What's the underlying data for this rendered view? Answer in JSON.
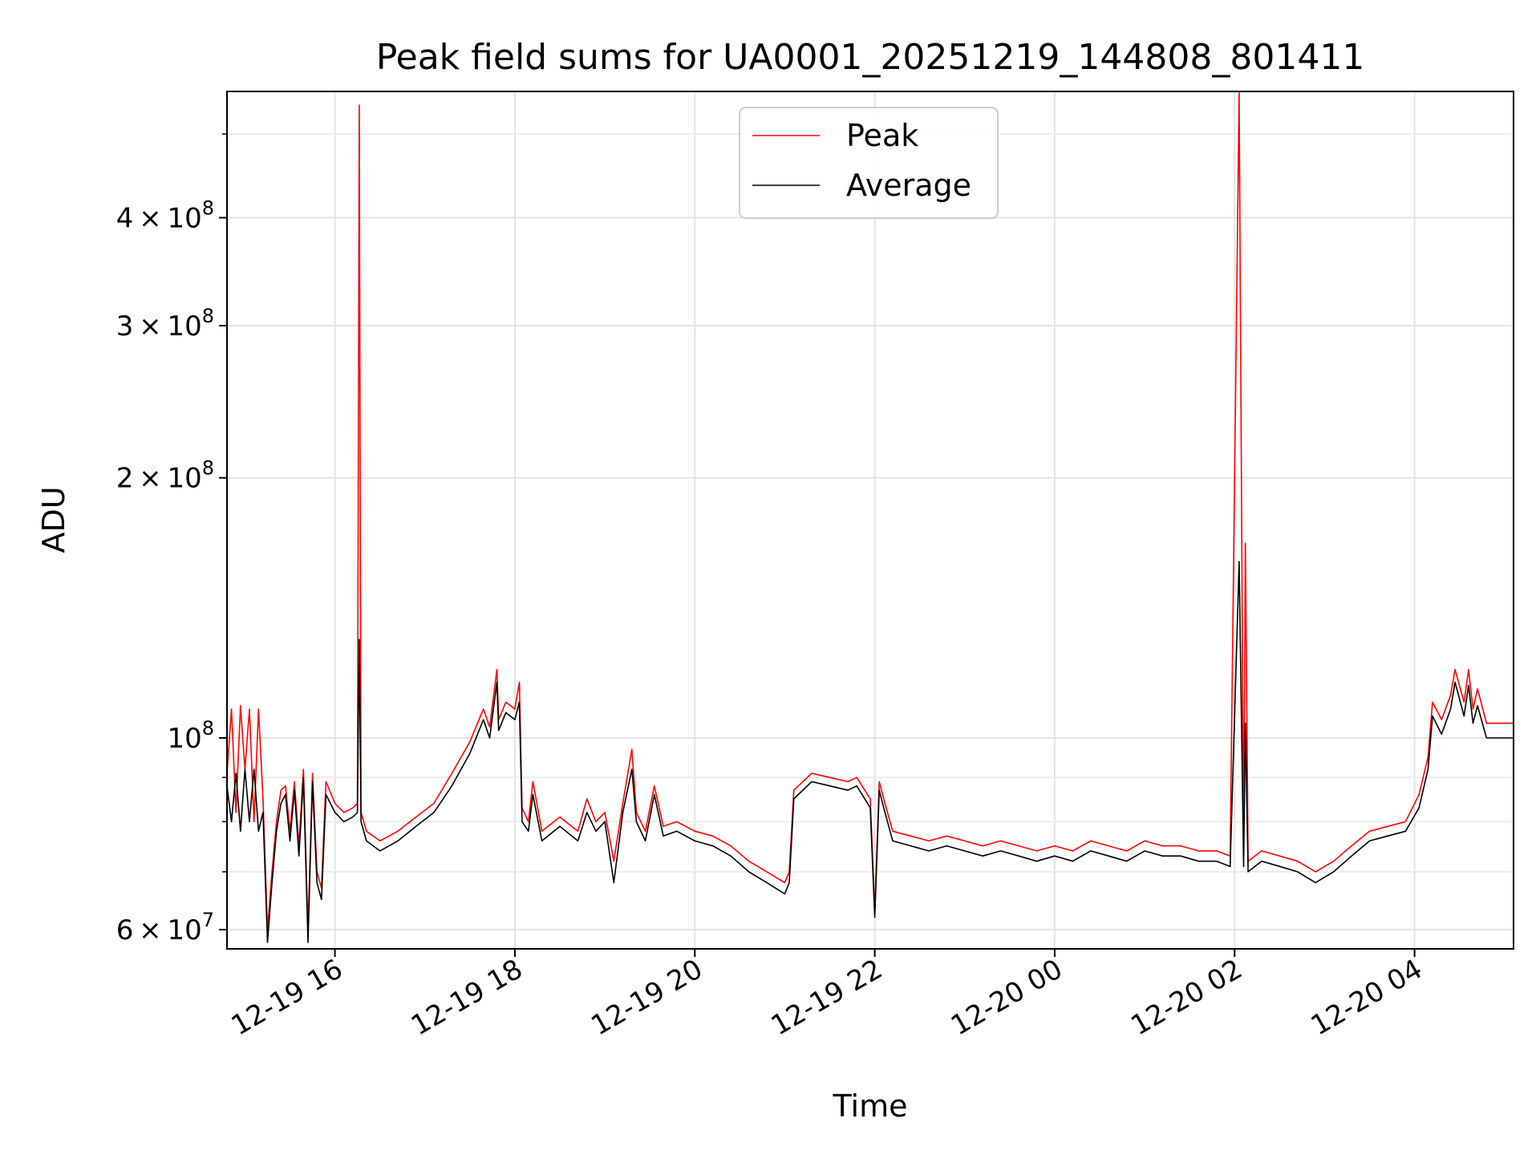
{
  "chart_data": {
    "type": "line",
    "title": "Peak field sums for UA0001_20251219_144808_801411",
    "xlabel": "Time",
    "ylabel": "ADU",
    "yscale": "log",
    "xlim_hours": [
      14.8,
      29.1
    ],
    "ylim": [
      57000000,
      560000000
    ],
    "grid": true,
    "legend_loc": "upper center",
    "x_ticks": [
      {
        "hour": 16,
        "label": "12-19 16"
      },
      {
        "hour": 18,
        "label": "12-19 18"
      },
      {
        "hour": 20,
        "label": "12-19 20"
      },
      {
        "hour": 22,
        "label": "12-19 22"
      },
      {
        "hour": 24,
        "label": "12-20 00"
      },
      {
        "hour": 26,
        "label": "12-20 02"
      },
      {
        "hour": 28,
        "label": "12-20 04"
      }
    ],
    "y_ticks": [
      {
        "value": 60000000,
        "mant": "6 × 10",
        "exp": "7"
      },
      {
        "value": 100000000,
        "mant": "10",
        "exp": "8"
      },
      {
        "value": 200000000,
        "mant": "2 × 10",
        "exp": "8"
      },
      {
        "value": 300000000,
        "mant": "3 × 10",
        "exp": "8"
      },
      {
        "value": 400000000,
        "mant": "4 × 10",
        "exp": "8"
      }
    ],
    "y_minor_grid": [
      70000000,
      80000000,
      90000000,
      500000000
    ],
    "series": [
      {
        "name": "Peak",
        "color": "#ff0000",
        "points": [
          [
            14.8,
            91000000
          ],
          [
            14.85,
            108000000
          ],
          [
            14.9,
            82000000
          ],
          [
            14.95,
            109000000
          ],
          [
            15.0,
            92000000
          ],
          [
            15.05,
            108000000
          ],
          [
            15.1,
            80000000
          ],
          [
            15.15,
            108000000
          ],
          [
            15.2,
            85000000
          ],
          [
            15.25,
            60000000
          ],
          [
            15.3,
            70000000
          ],
          [
            15.35,
            80000000
          ],
          [
            15.4,
            87000000
          ],
          [
            15.45,
            88000000
          ],
          [
            15.5,
            78000000
          ],
          [
            15.55,
            89000000
          ],
          [
            15.6,
            75000000
          ],
          [
            15.65,
            92000000
          ],
          [
            15.7,
            60000000
          ],
          [
            15.75,
            91000000
          ],
          [
            15.8,
            70000000
          ],
          [
            15.85,
            67000000
          ],
          [
            15.9,
            89000000
          ],
          [
            16.0,
            84000000
          ],
          [
            16.1,
            82000000
          ],
          [
            16.2,
            83000000
          ],
          [
            16.25,
            84000000
          ],
          [
            16.27,
            540000000
          ],
          [
            16.29,
            82000000
          ],
          [
            16.35,
            78000000
          ],
          [
            16.5,
            76000000
          ],
          [
            16.7,
            78000000
          ],
          [
            16.9,
            81000000
          ],
          [
            17.1,
            84000000
          ],
          [
            17.3,
            91000000
          ],
          [
            17.5,
            99000000
          ],
          [
            17.65,
            108000000
          ],
          [
            17.72,
            103000000
          ],
          [
            17.8,
            120000000
          ],
          [
            17.82,
            105000000
          ],
          [
            17.9,
            110000000
          ],
          [
            18.0,
            108000000
          ],
          [
            18.05,
            116000000
          ],
          [
            18.08,
            83000000
          ],
          [
            18.15,
            80000000
          ],
          [
            18.2,
            89000000
          ],
          [
            18.3,
            78000000
          ],
          [
            18.5,
            81000000
          ],
          [
            18.7,
            78000000
          ],
          [
            18.8,
            85000000
          ],
          [
            18.9,
            80000000
          ],
          [
            19.0,
            82000000
          ],
          [
            19.1,
            72000000
          ],
          [
            19.2,
            84000000
          ],
          [
            19.3,
            97000000
          ],
          [
            19.35,
            82000000
          ],
          [
            19.45,
            78000000
          ],
          [
            19.55,
            88000000
          ],
          [
            19.65,
            79000000
          ],
          [
            19.8,
            80000000
          ],
          [
            20.0,
            78000000
          ],
          [
            20.2,
            77000000
          ],
          [
            20.4,
            75000000
          ],
          [
            20.6,
            72000000
          ],
          [
            20.8,
            70000000
          ],
          [
            21.0,
            68000000
          ],
          [
            21.05,
            70000000
          ],
          [
            21.1,
            87000000
          ],
          [
            21.3,
            91000000
          ],
          [
            21.5,
            90000000
          ],
          [
            21.7,
            89000000
          ],
          [
            21.8,
            90000000
          ],
          [
            21.95,
            85000000
          ],
          [
            22.0,
            63000000
          ],
          [
            22.05,
            89000000
          ],
          [
            22.1,
            85000000
          ],
          [
            22.2,
            78000000
          ],
          [
            22.4,
            77000000
          ],
          [
            22.6,
            76000000
          ],
          [
            22.8,
            77000000
          ],
          [
            23.0,
            76000000
          ],
          [
            23.2,
            75000000
          ],
          [
            23.4,
            76000000
          ],
          [
            23.6,
            75000000
          ],
          [
            23.8,
            74000000
          ],
          [
            24.0,
            75000000
          ],
          [
            24.2,
            74000000
          ],
          [
            24.4,
            76000000
          ],
          [
            24.6,
            75000000
          ],
          [
            24.8,
            74000000
          ],
          [
            25.0,
            76000000
          ],
          [
            25.2,
            75000000
          ],
          [
            25.4,
            75000000
          ],
          [
            25.6,
            74000000
          ],
          [
            25.8,
            74000000
          ],
          [
            25.95,
            73000000
          ],
          [
            26.05,
            560000000
          ],
          [
            26.1,
            73000000
          ],
          [
            26.12,
            168000000
          ],
          [
            26.15,
            72000000
          ],
          [
            26.3,
            74000000
          ],
          [
            26.5,
            73000000
          ],
          [
            26.7,
            72000000
          ],
          [
            26.9,
            70000000
          ],
          [
            27.1,
            72000000
          ],
          [
            27.3,
            75000000
          ],
          [
            27.5,
            78000000
          ],
          [
            27.7,
            79000000
          ],
          [
            27.9,
            80000000
          ],
          [
            28.05,
            86000000
          ],
          [
            28.15,
            95000000
          ],
          [
            28.2,
            110000000
          ],
          [
            28.3,
            105000000
          ],
          [
            28.4,
            112000000
          ],
          [
            28.45,
            120000000
          ],
          [
            28.55,
            110000000
          ],
          [
            28.6,
            120000000
          ],
          [
            28.65,
            108000000
          ],
          [
            28.7,
            114000000
          ],
          [
            28.8,
            104000000
          ],
          [
            28.95,
            104000000
          ],
          [
            29.1,
            104000000
          ]
        ]
      },
      {
        "name": "Average",
        "color": "#000000",
        "points": [
          [
            14.8,
            88000000
          ],
          [
            14.85,
            80000000
          ],
          [
            14.9,
            91000000
          ],
          [
            14.95,
            78000000
          ],
          [
            15.0,
            92000000
          ],
          [
            15.05,
            80000000
          ],
          [
            15.1,
            92000000
          ],
          [
            15.15,
            78000000
          ],
          [
            15.2,
            82000000
          ],
          [
            15.25,
            58000000
          ],
          [
            15.3,
            68000000
          ],
          [
            15.35,
            78000000
          ],
          [
            15.4,
            84000000
          ],
          [
            15.45,
            86000000
          ],
          [
            15.5,
            76000000
          ],
          [
            15.55,
            87000000
          ],
          [
            15.6,
            73000000
          ],
          [
            15.65,
            90000000
          ],
          [
            15.7,
            58000000
          ],
          [
            15.75,
            89000000
          ],
          [
            15.8,
            68000000
          ],
          [
            15.85,
            65000000
          ],
          [
            15.9,
            86000000
          ],
          [
            16.0,
            82000000
          ],
          [
            16.1,
            80000000
          ],
          [
            16.2,
            81000000
          ],
          [
            16.25,
            82000000
          ],
          [
            16.27,
            130000000
          ],
          [
            16.29,
            80000000
          ],
          [
            16.35,
            76000000
          ],
          [
            16.5,
            74000000
          ],
          [
            16.7,
            76000000
          ],
          [
            16.9,
            79000000
          ],
          [
            17.1,
            82000000
          ],
          [
            17.3,
            88000000
          ],
          [
            17.5,
            96000000
          ],
          [
            17.65,
            105000000
          ],
          [
            17.72,
            100000000
          ],
          [
            17.8,
            116000000
          ],
          [
            17.82,
            102000000
          ],
          [
            17.9,
            107000000
          ],
          [
            18.0,
            105000000
          ],
          [
            18.05,
            110000000
          ],
          [
            18.08,
            80000000
          ],
          [
            18.15,
            78000000
          ],
          [
            18.2,
            86000000
          ],
          [
            18.3,
            76000000
          ],
          [
            18.5,
            79000000
          ],
          [
            18.7,
            76000000
          ],
          [
            18.8,
            82000000
          ],
          [
            18.9,
            78000000
          ],
          [
            19.0,
            80000000
          ],
          [
            19.1,
            68000000
          ],
          [
            19.2,
            82000000
          ],
          [
            19.3,
            92000000
          ],
          [
            19.35,
            80000000
          ],
          [
            19.45,
            76000000
          ],
          [
            19.55,
            86000000
          ],
          [
            19.65,
            77000000
          ],
          [
            19.8,
            78000000
          ],
          [
            20.0,
            76000000
          ],
          [
            20.2,
            75000000
          ],
          [
            20.4,
            73000000
          ],
          [
            20.6,
            70000000
          ],
          [
            20.8,
            68000000
          ],
          [
            21.0,
            66000000
          ],
          [
            21.05,
            68000000
          ],
          [
            21.1,
            85000000
          ],
          [
            21.3,
            89000000
          ],
          [
            21.5,
            88000000
          ],
          [
            21.7,
            87000000
          ],
          [
            21.8,
            88000000
          ],
          [
            21.95,
            83000000
          ],
          [
            22.0,
            62000000
          ],
          [
            22.05,
            87000000
          ],
          [
            22.1,
            83000000
          ],
          [
            22.2,
            76000000
          ],
          [
            22.4,
            75000000
          ],
          [
            22.6,
            74000000
          ],
          [
            22.8,
            75000000
          ],
          [
            23.0,
            74000000
          ],
          [
            23.2,
            73000000
          ],
          [
            23.4,
            74000000
          ],
          [
            23.6,
            73000000
          ],
          [
            23.8,
            72000000
          ],
          [
            24.0,
            73000000
          ],
          [
            24.2,
            72000000
          ],
          [
            24.4,
            74000000
          ],
          [
            24.6,
            73000000
          ],
          [
            24.8,
            72000000
          ],
          [
            25.0,
            74000000
          ],
          [
            25.2,
            73000000
          ],
          [
            25.4,
            73000000
          ],
          [
            25.6,
            72000000
          ],
          [
            25.8,
            72000000
          ],
          [
            25.95,
            71000000
          ],
          [
            26.05,
            160000000
          ],
          [
            26.1,
            71000000
          ],
          [
            26.12,
            104000000
          ],
          [
            26.15,
            70000000
          ],
          [
            26.3,
            72000000
          ],
          [
            26.5,
            71000000
          ],
          [
            26.7,
            70000000
          ],
          [
            26.9,
            68000000
          ],
          [
            27.1,
            70000000
          ],
          [
            27.3,
            73000000
          ],
          [
            27.5,
            76000000
          ],
          [
            27.7,
            77000000
          ],
          [
            27.9,
            78000000
          ],
          [
            28.05,
            83000000
          ],
          [
            28.15,
            92000000
          ],
          [
            28.2,
            106000000
          ],
          [
            28.3,
            101000000
          ],
          [
            28.4,
            108000000
          ],
          [
            28.45,
            116000000
          ],
          [
            28.55,
            106000000
          ],
          [
            28.6,
            115000000
          ],
          [
            28.65,
            104000000
          ],
          [
            28.7,
            109000000
          ],
          [
            28.8,
            100000000
          ],
          [
            28.95,
            100000000
          ],
          [
            29.1,
            100000000
          ]
        ]
      }
    ]
  }
}
